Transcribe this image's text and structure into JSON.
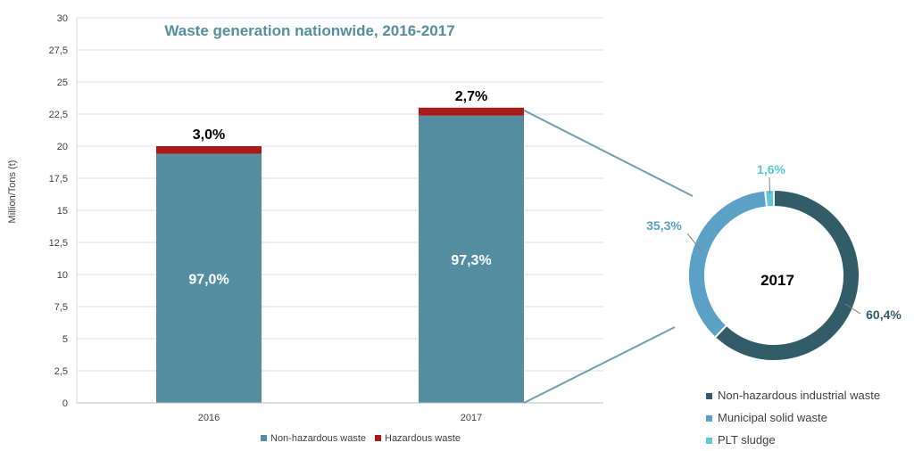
{
  "chart_data": [
    {
      "type": "bar",
      "stacked": true,
      "title": "Waste generation nationwide, 2016-2017",
      "ylabel": "Million/Tons (t)",
      "xlabel": "",
      "ylim": [
        0,
        30
      ],
      "yticks": [
        "0",
        "2,5",
        "5",
        "7,5",
        "10",
        "12,5",
        "15",
        "17,5",
        "20",
        "22,5",
        "25",
        "27,5",
        "30"
      ],
      "grid": true,
      "legend_position": "bottom",
      "categories": [
        "2016",
        "2017"
      ],
      "series": [
        {
          "name": "Non-hazardous waste",
          "color": "#558ea1",
          "values": [
            19.4,
            22.38
          ],
          "labels": [
            "97,0%",
            "97,3%"
          ]
        },
        {
          "name": "Hazardous waste",
          "color": "#a61c1c",
          "values": [
            0.6,
            0.62
          ],
          "labels": [
            "3,0%",
            "2,7%"
          ]
        }
      ]
    },
    {
      "type": "pie",
      "donut": true,
      "center_label": "2017",
      "legend_position": "bottom-right",
      "slices": [
        {
          "name": "Non-hazardous industrial waste",
          "value": 60.4,
          "label": "60,4%",
          "color": "#325d68"
        },
        {
          "name": "Municipal solid waste",
          "value": 35.3,
          "label": "35,3%",
          "color": "#5ba1c6"
        },
        {
          "name": "PLT sludge",
          "value": 1.6,
          "label": "1,6%",
          "color": "#5ec8d4"
        }
      ]
    }
  ]
}
